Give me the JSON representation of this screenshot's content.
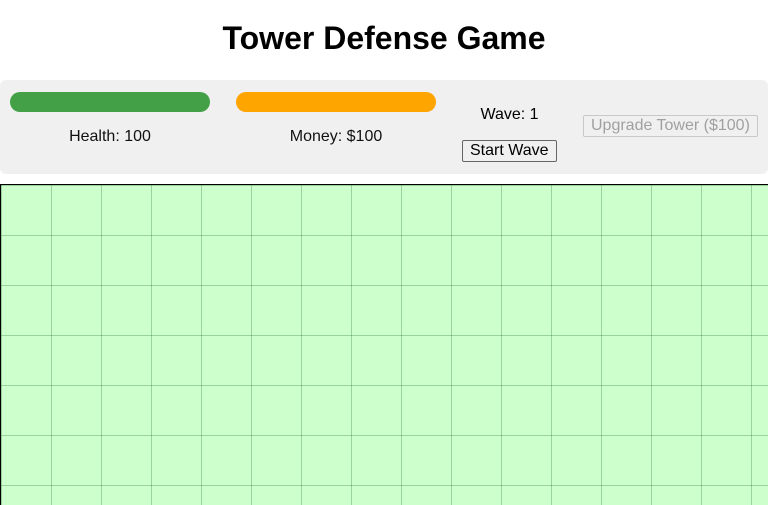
{
  "title": "Tower Defense Game",
  "stats": {
    "health_label": "Health: 100",
    "health_fraction": 1.0,
    "health_color": "#43a047",
    "money_label": "Money: $100",
    "money_color": "#ffa500",
    "wave_label": "Wave: 1"
  },
  "buttons": {
    "start_wave": "Start Wave",
    "upgrade_tower": "Upgrade Tower ($100)"
  },
  "board": {
    "background": "#ccffcc"
  }
}
